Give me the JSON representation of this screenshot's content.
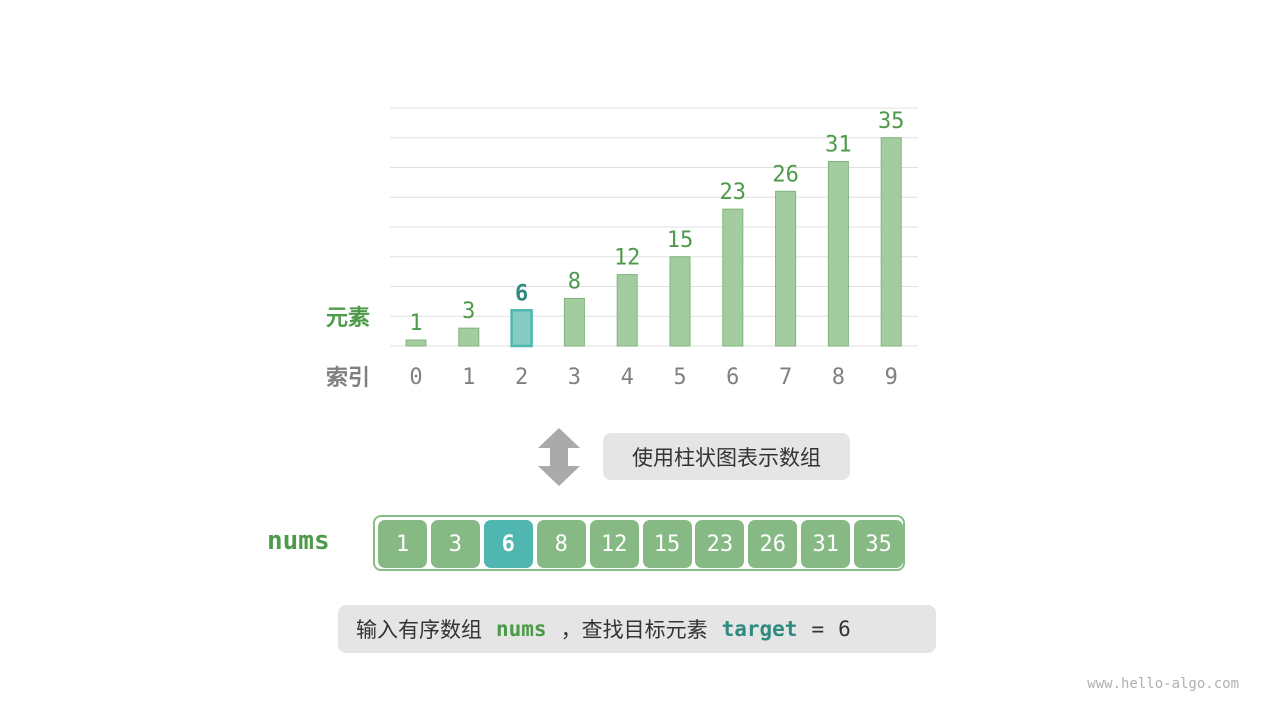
{
  "chart_data": {
    "type": "bar",
    "categories": [
      "0",
      "1",
      "2",
      "3",
      "4",
      "5",
      "6",
      "7",
      "8",
      "9"
    ],
    "values": [
      1,
      3,
      6,
      8,
      12,
      15,
      23,
      26,
      31,
      35
    ],
    "highlight_index": 2,
    "ylim": [
      0,
      40
    ],
    "grid": true,
    "ylabel": "元素",
    "xlabel": "索引",
    "colors": {
      "bar": "#a3cc9f",
      "bar_border": "#7fb57b",
      "highlight": "#84ccc3",
      "highlight_border": "#4fb7b0",
      "label": "#4d9a4a",
      "highlight_label": "#2f8a80",
      "index": "#808080",
      "grid": "#e0e0e0"
    }
  },
  "arrow_icon": "double-arrow-vertical",
  "caption": "使用柱状图表示数组",
  "array": {
    "name": "nums",
    "values": [
      "1",
      "3",
      "6",
      "8",
      "12",
      "15",
      "23",
      "26",
      "31",
      "35"
    ],
    "highlight_index": 2
  },
  "description": {
    "prefix": "输入有序数组",
    "var": "nums",
    "middle": "，查找目标元素",
    "target": "target",
    "eq": "=",
    "value": "6"
  },
  "footer": "www.hello-algo.com"
}
